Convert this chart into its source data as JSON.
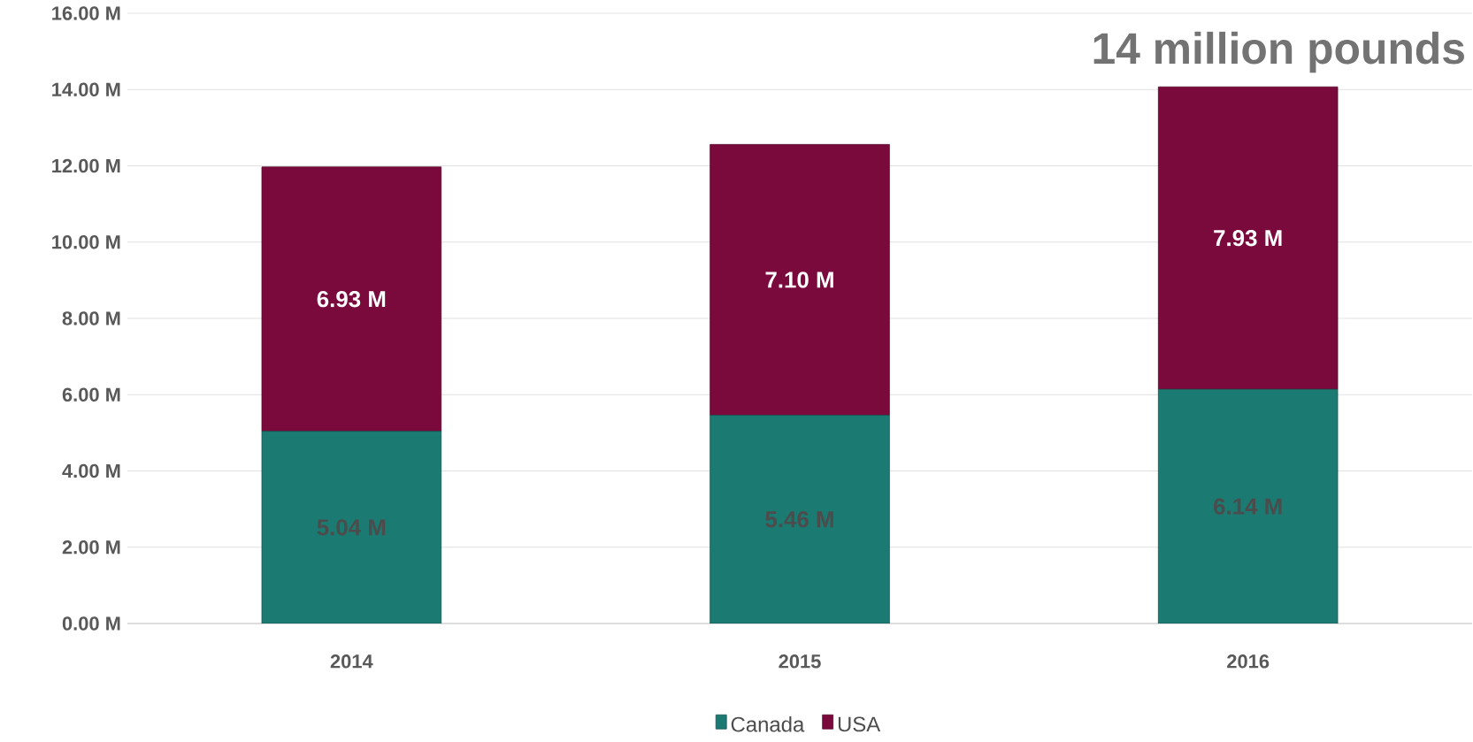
{
  "chart_data": {
    "type": "bar",
    "stacked": true,
    "categories": [
      "2014",
      "2015",
      "2016"
    ],
    "series": [
      {
        "name": "Canada",
        "color": "#1b7a72",
        "values": [
          5.04,
          5.46,
          6.14
        ],
        "value_labels": [
          "5.04 M",
          "5.46 M",
          "6.14 M"
        ]
      },
      {
        "name": "USA",
        "color": "#7a0a3c",
        "values": [
          6.93,
          7.1,
          7.93
        ],
        "value_labels": [
          "6.93 M",
          "7.10 M",
          "7.93 M"
        ]
      }
    ],
    "ylim": [
      0,
      16
    ],
    "yticks": [
      {
        "value": 0,
        "label": "0.00 M"
      },
      {
        "value": 2,
        "label": "2.00 M"
      },
      {
        "value": 4,
        "label": "4.00 M"
      },
      {
        "value": 6,
        "label": "6.00 M"
      },
      {
        "value": 8,
        "label": "8.00 M"
      },
      {
        "value": 10,
        "label": "10.00 M"
      },
      {
        "value": 12,
        "label": "12.00 M"
      },
      {
        "value": 14,
        "label": "14.00 M"
      },
      {
        "value": 16,
        "label": "16.00 M"
      }
    ],
    "grid": "y",
    "legend": "bottom",
    "annotations": [
      "14 million pounds"
    ]
  }
}
